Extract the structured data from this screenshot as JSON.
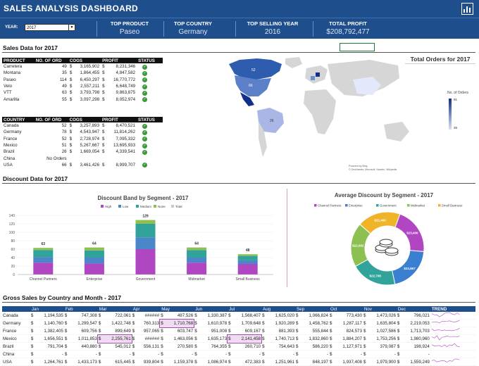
{
  "header": {
    "title": "SALES ANALYSIS DASHBOARD"
  },
  "kpi": {
    "year_label": "YEAR:",
    "year_value": "2017",
    "top_product_label": "TOP PRODUCT",
    "top_product": "Paseo",
    "top_country_label": "TOP COUNTRY",
    "top_country": "Germany",
    "top_year_label": "TOP SELLING YEAR",
    "top_year": "2016",
    "total_profit_label": "TOTAL PROFIT",
    "total_profit": "$208,792,477"
  },
  "sales_title": "Sales Data for 2017",
  "products": {
    "headers": [
      "PRODUCT",
      "NO. OF ORD",
      "COGS",
      "PROFIT",
      "STATUS"
    ],
    "rows": [
      [
        "Carretera",
        "49",
        "$",
        "3,165,902",
        "$",
        "8,231,346"
      ],
      [
        "Montana",
        "35",
        "$",
        "1,864,455",
        "$",
        "4,847,582"
      ],
      [
        "Paseo",
        "114",
        "$",
        "6,450,297",
        "$",
        "16,770,772"
      ],
      [
        "Velo",
        "49",
        "$",
        "2,557,211",
        "$",
        "6,648,749"
      ],
      [
        "VTT",
        "63",
        "$",
        "3,793,798",
        "$",
        "9,863,875"
      ],
      [
        "Amarilla",
        "55",
        "$",
        "3,097,298",
        "$",
        "8,052,974"
      ]
    ]
  },
  "countries": {
    "headers": [
      "COUNTRY",
      "NO. OF ORD",
      "COGS",
      "PROFIT",
      "STATUS"
    ],
    "rows": [
      [
        "Canada",
        "52",
        "$",
        "3,257,893",
        "$",
        "8,470,521",
        true
      ],
      [
        "Germany",
        "78",
        "$",
        "4,543,947",
        "$",
        "11,814,262",
        true
      ],
      [
        "France",
        "52",
        "$",
        "2,728,974",
        "$",
        "7,095,332",
        true
      ],
      [
        "Mexico",
        "51",
        "$",
        "5,267,667",
        "$",
        "13,695,933",
        true
      ],
      [
        "Brazil",
        "26",
        "$",
        "1,669,054",
        "$",
        "4,339,541",
        true
      ],
      [
        "China",
        "No Orders",
        "",
        "",
        "",
        "",
        false
      ],
      [
        "USA",
        "66",
        "$",
        "3,461,426",
        "$",
        "8,999,707",
        true
      ]
    ]
  },
  "map": {
    "title": "Total Orders for 2017",
    "legend_title": "No. of Orders",
    "legend_max": "91",
    "legend_min": "26",
    "labels": {
      "us": "66",
      "ca": "52",
      "br": "26"
    },
    "credit1": "Powered by Bing",
    "credit2": "© GeoNames, Microsoft, Navinfo, Wikipedia"
  },
  "discount_title": "Discount Data for 2017",
  "chart_data": [
    {
      "type": "bar",
      "title": "Discount Band by Segment - 2017",
      "categories": [
        "Channel Partners",
        "Enterprise",
        "Government",
        "Midmarket",
        "Small Business"
      ],
      "legend": [
        "High",
        "Low",
        "Medium",
        "None",
        "Total"
      ],
      "colors": [
        "#b146c2",
        "#4a86c8",
        "#31a39a",
        "#8cc152",
        "#c9c9c9"
      ],
      "series": [
        {
          "name": "High",
          "values": [
            28,
            26,
            60,
            28,
            25
          ]
        },
        {
          "name": "Low",
          "values": [
            13,
            14,
            28,
            12,
            9
          ]
        },
        {
          "name": "Medium",
          "values": [
            17,
            17,
            32,
            18,
            10
          ]
        },
        {
          "name": "None",
          "values": [
            5,
            7,
            9,
            6,
            4
          ]
        }
      ],
      "totals": [
        63,
        64,
        129,
        64,
        48
      ],
      "yticks": [
        "0",
        "20",
        "40",
        "60",
        "80",
        "100",
        "120",
        "140"
      ],
      "ylim": [
        0,
        140
      ]
    },
    {
      "type": "pie",
      "title": "Average Discount by Segment - 2017",
      "legend": [
        "Channel Partners",
        "Enterprise",
        "Government",
        "Midmarket",
        "Small Business"
      ],
      "colors": [
        "#b146c2",
        "#3b7fd0",
        "#31a39a",
        "#8cc152",
        "#f0b429"
      ],
      "values": [
        23400,
        22867,
        22708,
        22082,
        21490
      ],
      "labels": [
        "$23,400",
        "$22,867",
        "$22,708",
        "$22,082",
        "$21,490"
      ]
    }
  ],
  "gross_title": "Gross Sales by Country and Month - 2017",
  "gross": {
    "months": [
      "Jan",
      "Feb",
      "Mar",
      "Apr",
      "May",
      "Jun",
      "Jul",
      "Aug",
      "Sep",
      "Oct",
      "Nov",
      "Dec"
    ],
    "trend_label": "TREND",
    "rows": [
      {
        "c": "Canada",
        "v": [
          "1,194,535",
          "747,308",
          "722,061",
          "######",
          "497,526",
          "1,330,387",
          "1,568,407",
          "1,625,020",
          "1,066,824",
          "773,430",
          "1,473,026",
          "796,021"
        ]
      },
      {
        "c": "Germany",
        "v": [
          "1,140,760",
          "1,299,547",
          "1,422,748",
          "760,313",
          "1,710,768",
          "1,610,978",
          "1,709,648",
          "1,920,289",
          "1,458,762",
          "1,287,117",
          "1,635,804",
          "2,219,053"
        ]
      },
      {
        "c": "France",
        "v": [
          "1,382,405",
          "609,756",
          "899,649",
          "957,065",
          "603,747",
          "951,008",
          "609,167",
          "881,393",
          "555,844",
          "824,573",
          "1,027,586",
          "1,713,703"
        ]
      },
      {
        "c": "Mexico",
        "v": [
          "1,656,551",
          "1,011,853",
          "2,255,761",
          "######",
          "1,463,056",
          "1,635,173",
          "2,141,458",
          "1,740,713",
          "1,832,860",
          "1,884,207",
          "1,753,256",
          "1,980,960"
        ]
      },
      {
        "c": "Brazil",
        "v": [
          "791,704",
          "440,880",
          "545,012",
          "556,131",
          "270,580",
          "764,355",
          "260,710",
          "754,643",
          "586,220",
          "1,127,971",
          "379,087",
          "198,924"
        ]
      },
      {
        "c": "China",
        "v": [
          "-",
          "-",
          "-",
          "-",
          "-",
          "-",
          "-",
          "-",
          "-",
          "-",
          "-",
          "-"
        ]
      },
      {
        "c": "USA",
        "v": [
          "1,264,761",
          "1,433,173",
          "615,445",
          "939,804",
          "1,159,378",
          "1,086,974",
          "472,383",
          "1,251,961",
          "848,197",
          "1,937,408",
          "1,979,900",
          "1,559,249"
        ]
      }
    ]
  }
}
